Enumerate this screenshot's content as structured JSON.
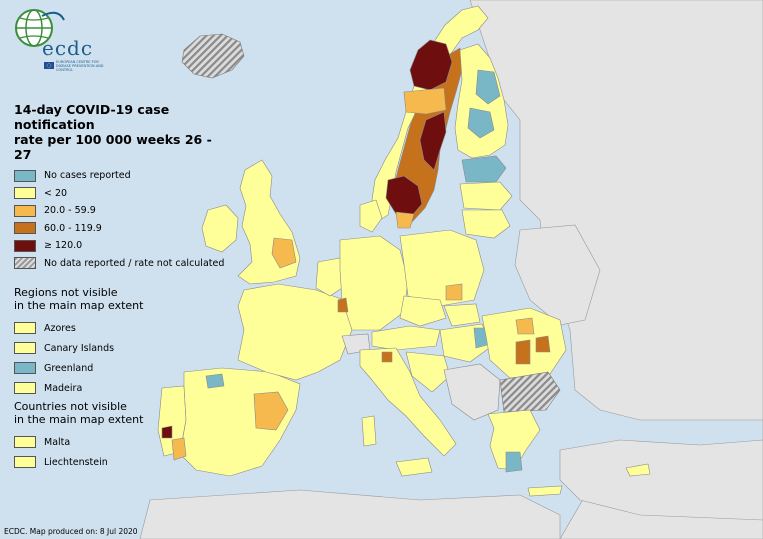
{
  "colors": {
    "sea": "#cfe0ee",
    "non_eu_land": "#e4e4e4",
    "borders": "#8a8a8a",
    "no_cases": "#79b7c7",
    "lt20": "#ffff99",
    "r20_59": "#f6b94d",
    "r60_119": "#c6721d",
    "ge120": "#6e0e0e",
    "no_data": "#bfbfbf"
  },
  "logo": {
    "text": "ecdc",
    "subtitle": "EUROPEAN CENTRE FOR DISEASE PREVENTION AND CONTROL"
  },
  "legend": {
    "title_line1": "14-day COVID-19 case notification",
    "title_line2": "rate per 100 000 weeks 26 - 27",
    "items": [
      {
        "label": "No cases reported",
        "color": "#79b7c7"
      },
      {
        "label": "< 20",
        "color": "#ffff99"
      },
      {
        "label": "20.0 - 59.9",
        "color": "#f6b94d"
      },
      {
        "label": "60.0 - 119.9",
        "color": "#c6721d"
      },
      {
        "label": "≥ 120.0",
        "color": "#6e0e0e"
      },
      {
        "label": "No data reported / rate not calculated",
        "color": "hatch"
      }
    ]
  },
  "regions_not_visible": {
    "title_line1": "Regions not visible",
    "title_line2": "in the main map extent",
    "items": [
      {
        "label": "Azores",
        "color": "#ffff99"
      },
      {
        "label": "Canary Islands",
        "color": "#ffff99"
      },
      {
        "label": "Greenland",
        "color": "#79b7c7"
      },
      {
        "label": "Madeira",
        "color": "#ffff99"
      }
    ]
  },
  "countries_not_visible": {
    "title_line1": "Countries not visible",
    "title_line2": "in the main map extent",
    "items": [
      {
        "label": "Malta",
        "color": "#ffff99"
      },
      {
        "label": "Liechtenstein",
        "color": "#ffff99"
      }
    ]
  },
  "footer": "ECDC. Map produced on: 8 Jul 2020"
}
